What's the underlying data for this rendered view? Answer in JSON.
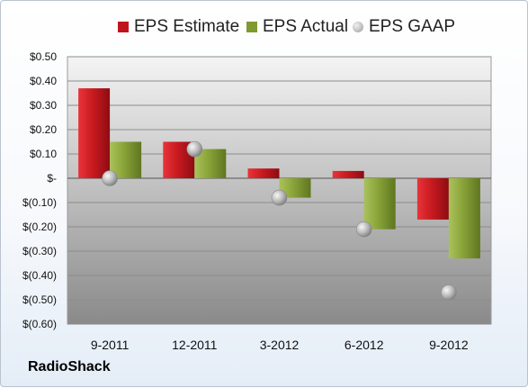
{
  "chart_data": {
    "type": "bar",
    "categories": [
      "9-2011",
      "12-2011",
      "3-2012",
      "6-2012",
      "9-2012"
    ],
    "series": [
      {
        "name": "EPS Estimate",
        "kind": "bar",
        "color": "#c0141c",
        "values": [
          0.37,
          0.15,
          0.04,
          0.03,
          -0.17
        ]
      },
      {
        "name": "EPS Actual",
        "kind": "bar",
        "color": "#7f9a2f",
        "values": [
          0.15,
          0.12,
          -0.08,
          -0.21,
          -0.33
        ]
      },
      {
        "name": "EPS GAAP",
        "kind": "marker",
        "color": "#a9a9a9",
        "values": [
          0.0,
          0.12,
          -0.08,
          -0.21,
          -0.47
        ]
      }
    ],
    "ylim": [
      -0.6,
      0.5
    ],
    "ytick_values": [
      0.5,
      0.4,
      0.3,
      0.2,
      0.1,
      0,
      -0.1,
      -0.2,
      -0.3,
      -0.4,
      -0.5,
      -0.6
    ],
    "ytick_labels": [
      "$0.50",
      "$0.40",
      "$0.30",
      "$0.20",
      "$0.10",
      "$-",
      "$(0.10)",
      "$(0.20)",
      "$(0.30)",
      "$(0.40)",
      "$(0.50)",
      "$(0.60)"
    ],
    "grid": true,
    "legend_position": "top"
  },
  "company": "RadioShack"
}
